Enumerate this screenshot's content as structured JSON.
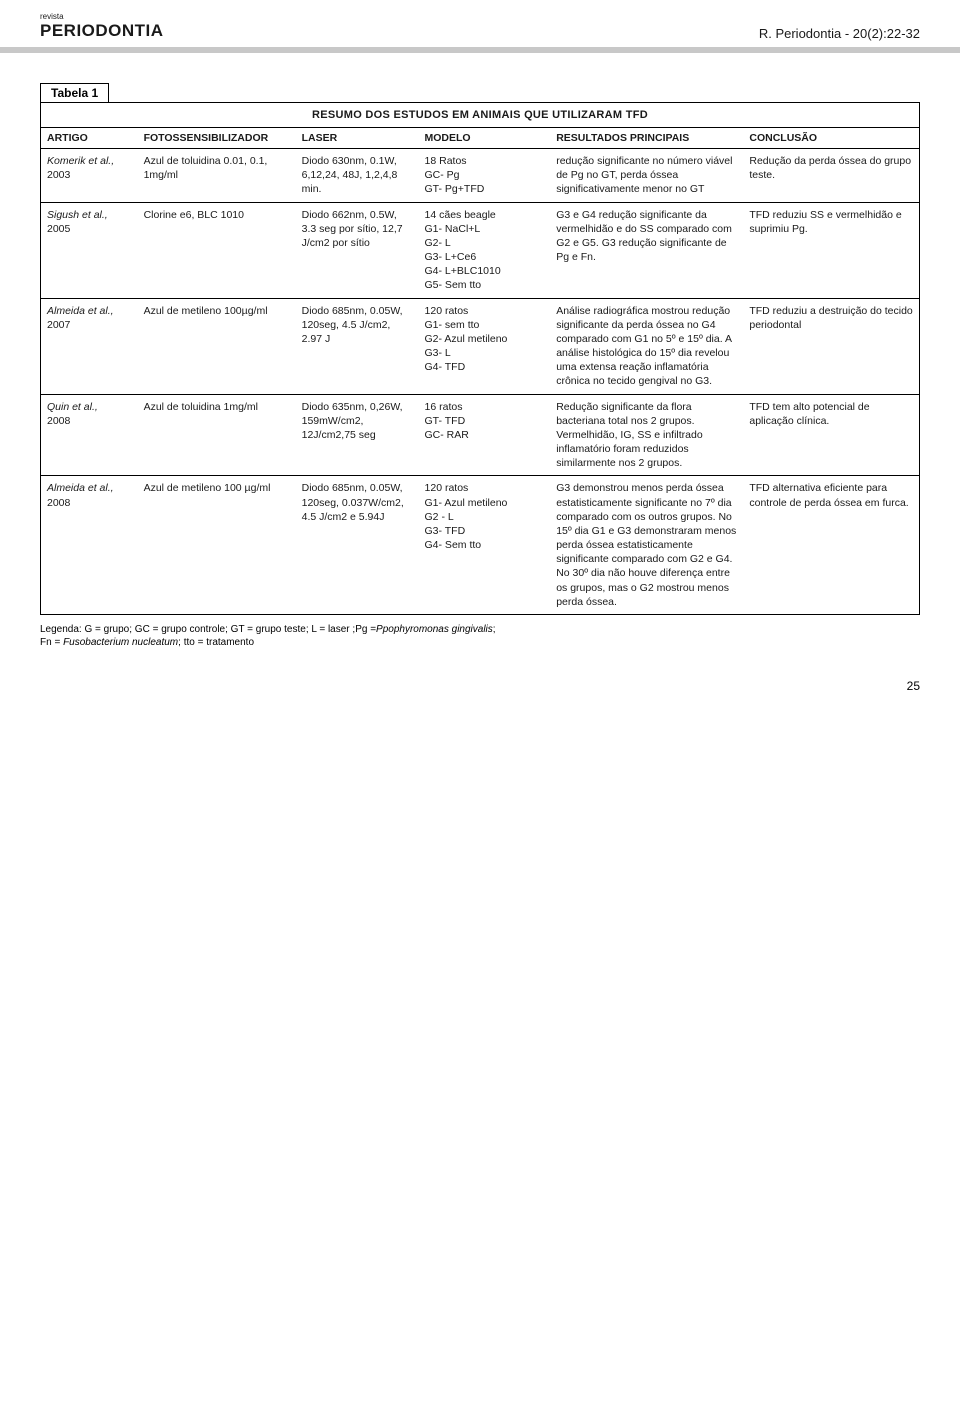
{
  "header": {
    "revista": "revista",
    "journal": "PERIODONTIA",
    "citation": "R. Periodontia - 20(2):22-32"
  },
  "table": {
    "label": "Tabela 1",
    "title": "RESUMO DOS ESTUDOS EM ANIMAIS QUE UTILIZARAM TFD",
    "columns": [
      "ARTIGO",
      "FOTOSSENSIBILIZADOR",
      "LASER",
      "MODELO",
      "RESULTADOS PRINCIPAIS",
      "CONCLUSÃO"
    ],
    "rows": [
      {
        "artigo_author": "Komerik et al.,",
        "artigo_year": "2003",
        "fotoss": "Azul de toluidina 0.01, 0.1, 1mg/ml",
        "laser": "Diodo 630nm, 0.1W, 6,12,24, 48J, 1,2,4,8 min.",
        "modelo": "18 Ratos\nGC- Pg\nGT- Pg+TFD",
        "resultados": "redução significante no número viável de Pg no GT, perda óssea significativamente menor no GT",
        "conclusao": "Redução da perda óssea do grupo teste."
      },
      {
        "artigo_author": "Sigush et al.,",
        "artigo_year": "2005",
        "fotoss": "Clorine e6, BLC 1010",
        "laser": "Diodo 662nm, 0.5W, 3.3 seg por sítio, 12,7 J/cm2 por sítio",
        "modelo": "14 cães beagle\nG1- NaCl+L\nG2- L\nG3- L+Ce6\nG4- L+BLC1010\nG5- Sem tto",
        "resultados": "G3 e G4 redução significante da vermelhidão e do SS comparado com G2 e G5. G3 redução significante de Pg e Fn.",
        "conclusao": "TFD reduziu SS e vermelhidão e suprimiu Pg."
      },
      {
        "artigo_author": "Almeida  et al.,",
        "artigo_year": "2007",
        "fotoss": "Azul de metileno 100µg/ml",
        "laser": "Diodo 685nm, 0.05W, 120seg, 4.5 J/cm2, 2.97 J",
        "modelo": "120 ratos\nG1- sem tto\nG2- Azul metileno\nG3- L\nG4- TFD",
        "resultados": "Análise radiográfica mostrou redução significante da perda óssea no G4 comparado com G1 no 5º e 15º dia. A análise histológica do 15º dia revelou uma extensa reação inflamatória crônica no tecido gengival no G3.",
        "conclusao": "TFD reduziu a destruição do tecido periodontal"
      },
      {
        "artigo_author": "Quin et al.,",
        "artigo_year": "2008",
        "fotoss": "Azul de toluidina 1mg/ml",
        "laser": "Diodo 635nm, 0,26W, 159mW/cm2, 12J/cm2,75 seg",
        "modelo": "16 ratos\nGT- TFD\nGC- RAR",
        "resultados": "Redução significante da flora bacteriana total nos 2 grupos. Vermelhidão, IG, SS e infiltrado inflamatório foram reduzidos similarmente nos 2 grupos.",
        "conclusao": "TFD tem alto potencial de aplicação clínica."
      },
      {
        "artigo_author": "Almeida  et al.,",
        "artigo_year": "2008",
        "fotoss": "Azul de metileno 100 µg/ml",
        "laser": "Diodo 685nm, 0.05W, 120seg, 0.037W/cm2, 4.5 J/cm2 e 5.94J",
        "modelo": "120 ratos\nG1- Azul metileno\nG2 - L\nG3- TFD\nG4- Sem tto",
        "resultados": "G3 demonstrou menos perda óssea estatisticamente significante no 7º dia comparado com os outros grupos. No 15º dia G1 e G3 demonstraram menos perda óssea estatisticamente significante comparado com G2 e G4. No 30º dia não houve diferença entre os grupos, mas o G2 mostrou menos perda óssea.",
        "conclusao": "TFD alternativa eficiente para controle de perda óssea em furca."
      }
    ]
  },
  "legend": "Legenda: G = grupo; GC = grupo controle; GT = grupo teste; L = laser ;Pg =Ppophyromonas gingivalis;\nFn = Fusobacterium nucleatum; tto = tratamento",
  "page_number": "25"
}
